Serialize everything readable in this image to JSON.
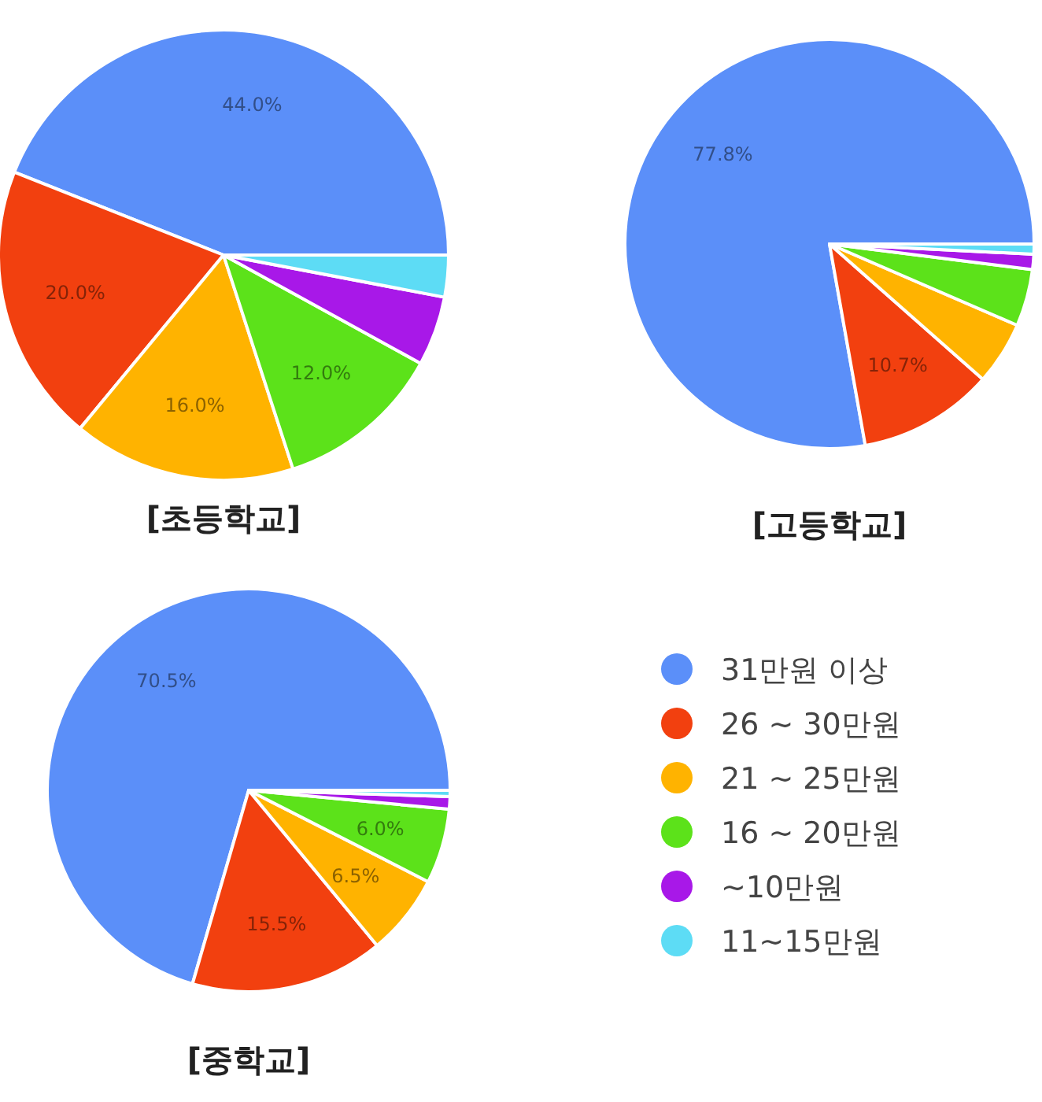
{
  "chart_data": [
    {
      "type": "pie",
      "title": "[초등학교]",
      "categories": [
        null,
        null,
        null,
        null,
        null,
        null
      ],
      "values": [
        44.0,
        20.0,
        16.0,
        12.0,
        5.0,
        3.0
      ],
      "value_labels": [
        "44.0%",
        "20.0%",
        "16.0%",
        "12.0%",
        null,
        null
      ],
      "colors": [
        "#5b8ff9",
        "#f2400f",
        "#ffb300",
        "#5ce21a",
        "#a818e8",
        "#5ddcf5"
      ],
      "legend": false
    },
    {
      "type": "pie",
      "title": "[고등학교]",
      "categories": [
        null,
        null,
        null,
        null,
        null,
        null
      ],
      "values": [
        77.8,
        10.7,
        5.0,
        4.5,
        1.2,
        0.8
      ],
      "value_labels": [
        "77.8%",
        "10.7%",
        null,
        null,
        null,
        null
      ],
      "colors": [
        "#5b8ff9",
        "#f2400f",
        "#ffb300",
        "#5ce21a",
        "#a818e8",
        "#5ddcf5"
      ],
      "legend": false
    },
    {
      "type": "pie",
      "title": "[중학교]",
      "categories": [
        "31만원 이상",
        "26 ~ 30만원",
        "21 ~ 25만원",
        "16 ~ 20만원",
        "~10만원",
        "11~15만원"
      ],
      "values": [
        70.5,
        15.5,
        6.5,
        6.0,
        1.0,
        0.5
      ],
      "value_labels": [
        "70.5%",
        "15.5%",
        "6.5%",
        "6.0%",
        null,
        null
      ],
      "colors": [
        "#5b8ff9",
        "#f2400f",
        "#ffb300",
        "#5ce21a",
        "#a818e8",
        "#5ddcf5"
      ],
      "legend": "right"
    }
  ]
}
